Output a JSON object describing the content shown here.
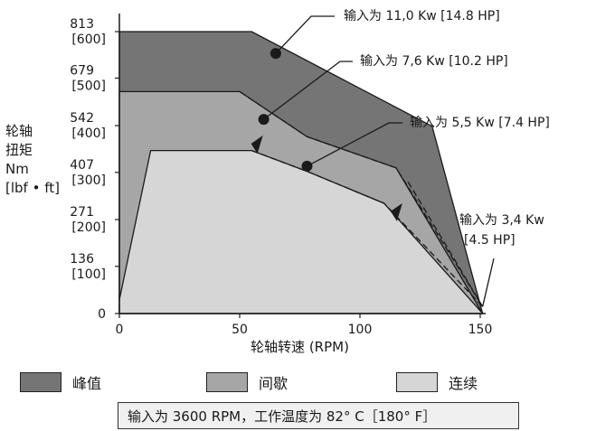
{
  "chart_data": {
    "type": "area",
    "xlabel": "轮轴转速 (RPM)",
    "ylabel_lines": [
      "轮轴",
      "扭矩",
      "Nm",
      "[lbf • ft]"
    ],
    "xlim": [
      0,
      150
    ],
    "ylim": [
      0,
      813
    ],
    "x_ticks": [
      "0",
      "50",
      "100",
      "150"
    ],
    "y_ticks": [
      {
        "value": 0,
        "nm": "0",
        "lbf": ""
      },
      {
        "value": 136,
        "nm": "136",
        "lbf": "[100]"
      },
      {
        "value": 271,
        "nm": "271",
        "lbf": "[200]"
      },
      {
        "value": 407,
        "nm": "407",
        "lbf": "[300]"
      },
      {
        "value": 542,
        "nm": "542",
        "lbf": "[400]"
      },
      {
        "value": 679,
        "nm": "679",
        "lbf": "[500]"
      },
      {
        "value": 813,
        "nm": "813",
        "lbf": "[600]"
      }
    ],
    "regions": [
      {
        "name": "峰值",
        "color": "#757575",
        "boundary": [
          [
            0,
            0
          ],
          [
            0,
            813
          ],
          [
            55,
            813
          ],
          [
            130,
            540
          ],
          [
            151,
            0
          ]
        ]
      },
      {
        "name": "间歇",
        "color": "#a6a6a6",
        "boundary": [
          [
            0,
            0
          ],
          [
            0,
            640
          ],
          [
            50,
            640
          ],
          [
            78,
            510
          ],
          [
            115,
            420
          ],
          [
            151,
            0
          ]
        ]
      },
      {
        "name": "连续",
        "color": "#d6d6d6",
        "boundary": [
          [
            0,
            0
          ],
          [
            0,
            40
          ],
          [
            13,
            470
          ],
          [
            55,
            470
          ],
          [
            78,
            410
          ],
          [
            110,
            318
          ],
          [
            151,
            0
          ]
        ]
      }
    ],
    "dashed_curves": [
      [
        [
          50,
          640
        ],
        [
          78,
          510
        ],
        [
          115,
          420
        ],
        [
          151,
          20
        ]
      ],
      [
        [
          55,
          470
        ],
        [
          78,
          410
        ],
        [
          110,
          318
        ],
        [
          151,
          20
        ]
      ],
      [
        [
          120,
          380
        ],
        [
          151,
          20
        ]
      ]
    ],
    "markers": [
      {
        "type": "dot",
        "x": 65,
        "y": 750
      },
      {
        "type": "dot",
        "x": 60,
        "y": 560
      },
      {
        "type": "dot",
        "x": 78,
        "y": 425
      },
      {
        "type": "arrow",
        "x": 57,
        "y": 495
      },
      {
        "type": "arrow",
        "x": 115,
        "y": 300
      }
    ],
    "annotations": [
      {
        "text": "输入为  11,0 Kw [14.8 HP]",
        "x": 65,
        "y": 750
      },
      {
        "text": "输入为  7,6 Kw [10.2 HP]",
        "x": 60,
        "y": 560
      },
      {
        "text": "输入为  5,5 Kw [7.4 HP]",
        "x": 78,
        "y": 425
      },
      {
        "text": "输入为  3,4 Kw",
        "text2": "[4.5 HP]",
        "x": 151,
        "y": 20
      }
    ]
  },
  "legend": [
    {
      "label": "峰值",
      "color": "#757575"
    },
    {
      "label": "间歇",
      "color": "#a6a6a6"
    },
    {
      "label": "连续",
      "color": "#d6d6d6"
    }
  ],
  "note": "输入为 3600 RPM，工作温度为 82° C［180° F］"
}
